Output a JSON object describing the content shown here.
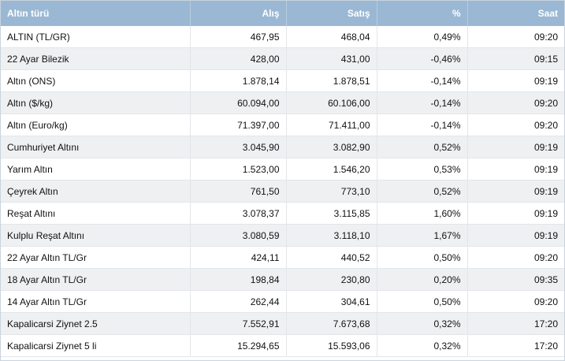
{
  "table": {
    "headers": [
      "Altın türü",
      "Alış",
      "Satış",
      "%",
      "Saat"
    ],
    "rows": [
      [
        "ALTIN (TL/GR)",
        "467,95",
        "468,04",
        "0,49%",
        "09:20"
      ],
      [
        "22 Ayar Bilezik",
        "428,00",
        "431,00",
        "-0,46%",
        "09:15"
      ],
      [
        "Altın (ONS)",
        "1.878,14",
        "1.878,51",
        "-0,14%",
        "09:19"
      ],
      [
        "Altın ($/kg)",
        "60.094,00",
        "60.106,00",
        "-0,14%",
        "09:20"
      ],
      [
        "Altın (Euro/kg)",
        "71.397,00",
        "71.411,00",
        "-0,14%",
        "09:20"
      ],
      [
        "Cumhuriyet Altını",
        "3.045,90",
        "3.082,90",
        "0,52%",
        "09:19"
      ],
      [
        "Yarım Altın",
        "1.523,00",
        "1.546,20",
        "0,53%",
        "09:19"
      ],
      [
        "Çeyrek Altın",
        "761,50",
        "773,10",
        "0,52%",
        "09:19"
      ],
      [
        "Reşat Altını",
        "3.078,37",
        "3.115,85",
        "1,60%",
        "09:19"
      ],
      [
        "Kulplu Reşat Altını",
        "3.080,59",
        "3.118,10",
        "1,67%",
        "09:19"
      ],
      [
        "22 Ayar Altın TL/Gr",
        "424,11",
        "440,52",
        "0,50%",
        "09:20"
      ],
      [
        "18 Ayar Altın TL/Gr",
        "198,84",
        "230,80",
        "0,20%",
        "09:35"
      ],
      [
        "14 Ayar Altın TL/Gr",
        "262,44",
        "304,61",
        "0,50%",
        "09:20"
      ],
      [
        "Kapalicarsi Ziynet 2.5",
        "7.552,91",
        "7.673,68",
        "0,32%",
        "17:20"
      ],
      [
        "Kapalicarsi Ziynet 5 li",
        "15.294,65",
        "15.593,06",
        "0,32%",
        "17:20"
      ]
    ]
  },
  "colors": {
    "header_bg": "#9ab8d3",
    "header_text": "#ffffff",
    "row_alt_bg": "#eef0f2"
  }
}
